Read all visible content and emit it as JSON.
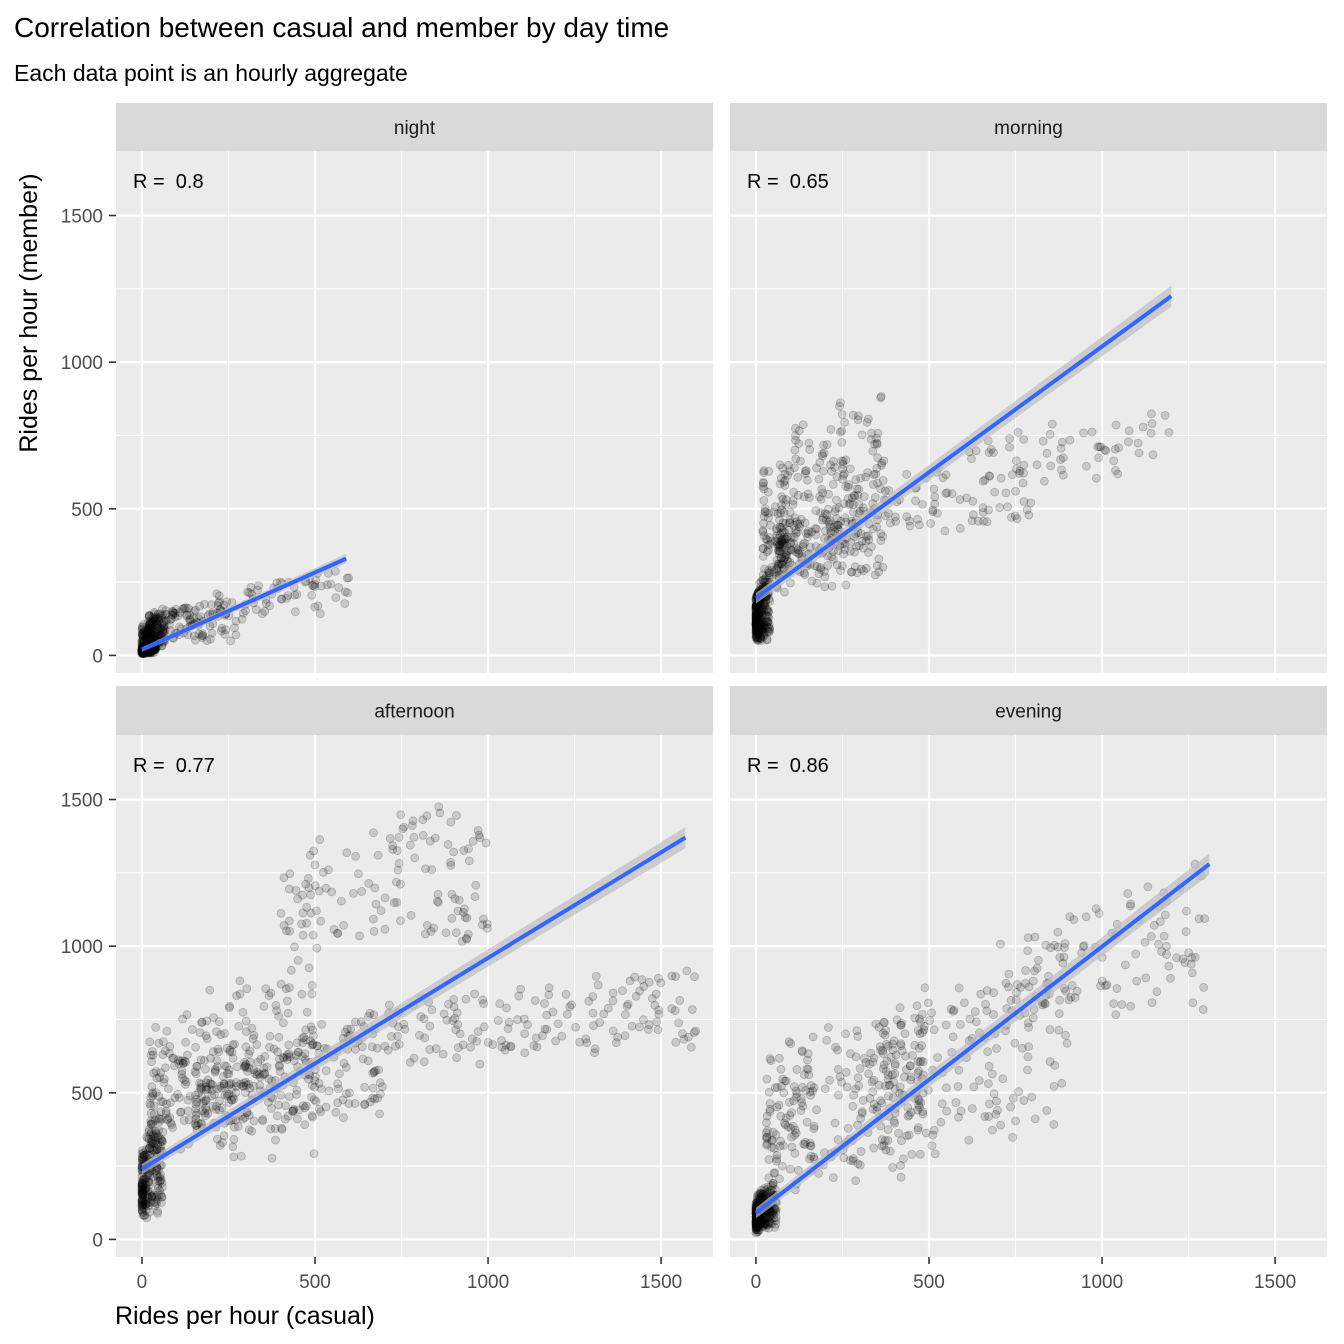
{
  "chart_data": {
    "type": "scatter",
    "title": "Correlation between casual and member by day time",
    "subtitle": "Each data point is an hourly aggregate",
    "xlabel": "Rides per hour (casual)",
    "ylabel": "Rides per hour (member)",
    "xlim": [
      -75,
      1650
    ],
    "ylim": [
      -60,
      1720
    ],
    "x_ticks": [
      0,
      500,
      1000,
      1500
    ],
    "y_ticks": [
      0,
      500,
      1000,
      1500
    ],
    "x_tick_labels": [
      "0",
      "500",
      "1000",
      "1500"
    ],
    "y_tick_labels": [
      "0",
      "500",
      "1000",
      "1500"
    ],
    "grid": true,
    "colors": {
      "panel_bg": "#EBEBEB",
      "strip_bg": "#D9D9D9",
      "grid": "#FFFFFF",
      "points": "#000000",
      "trend": "#3366FF",
      "band": "#BEBEBE"
    },
    "panels": [
      {
        "name": "night",
        "annotation": "R =  0.8",
        "trend": {
          "x0": 0,
          "y0": 20,
          "x1": 590,
          "y1": 330,
          "band_halfwidth": 8
        },
        "clusters": [
          {
            "x": [
              0,
              40
            ],
            "y": [
              0,
              40
            ],
            "n": 240,
            "skew": 1.0
          },
          {
            "x": [
              0,
              70
            ],
            "y": [
              0,
              160
            ],
            "n": 110,
            "skew": 0.5
          },
          {
            "x": [
              20,
              300
            ],
            "y": [
              20,
              200
            ],
            "n": 170,
            "skew": 1.5
          },
          {
            "x": [
              200,
              600
            ],
            "y": [
              110,
              300
            ],
            "n": 60,
            "skew": 0
          }
        ]
      },
      {
        "name": "morning",
        "annotation": "R =  0.65",
        "trend": {
          "x0": 0,
          "y0": 195,
          "x1": 1200,
          "y1": 1225,
          "band_halfwidth": 18
        },
        "clusters": [
          {
            "x": [
              0,
              40
            ],
            "y": [
              0,
              300
            ],
            "n": 300,
            "skew": 1.3
          },
          {
            "x": [
              20,
              370
            ],
            "y": [
              100,
              980
            ],
            "n": 260,
            "skew": 0.4
          },
          {
            "x": [
              60,
              350
            ],
            "y": [
              200,
              550
            ],
            "n": 160,
            "skew": 0.5
          },
          {
            "x": [
              250,
              800
            ],
            "y": [
              380,
              700
            ],
            "n": 90,
            "skew": 0
          },
          {
            "x": [
              600,
              1200
            ],
            "y": [
              550,
              860
            ],
            "n": 55,
            "skew": 0
          }
        ]
      },
      {
        "name": "afternoon",
        "annotation": "R =  0.77",
        "trend": {
          "x0": 0,
          "y0": 240,
          "x1": 1570,
          "y1": 1370,
          "band_halfwidth": 18
        },
        "clusters": [
          {
            "x": [
              0,
              60
            ],
            "y": [
              0,
              450
            ],
            "n": 220,
            "skew": 1.3
          },
          {
            "x": [
              20,
              500
            ],
            "y": [
              150,
              1000
            ],
            "n": 260,
            "skew": 0.4
          },
          {
            "x": [
              150,
              700
            ],
            "y": [
              300,
              800
            ],
            "n": 220,
            "skew": 0.3
          },
          {
            "x": [
              400,
              1000
            ],
            "y": [
              850,
              1600
            ],
            "n": 130,
            "skew": 0
          },
          {
            "x": [
              600,
              1600
            ],
            "y": [
              550,
              950
            ],
            "n": 160,
            "skew": 0
          }
        ]
      },
      {
        "name": "evening",
        "annotation": "R =  0.86",
        "trend": {
          "x0": 0,
          "y0": 90,
          "x1": 1310,
          "y1": 1280,
          "band_halfwidth": 18
        },
        "clusters": [
          {
            "x": [
              0,
              60
            ],
            "y": [
              0,
              200
            ],
            "n": 280,
            "skew": 1.3
          },
          {
            "x": [
              30,
              500
            ],
            "y": [
              50,
              900
            ],
            "n": 240,
            "skew": 0.4
          },
          {
            "x": [
              300,
              900
            ],
            "y": [
              150,
              1100
            ],
            "n": 180,
            "skew": 0
          },
          {
            "x": [
              700,
              1300
            ],
            "y": [
              650,
              1300
            ],
            "n": 100,
            "skew": 0
          }
        ]
      }
    ]
  }
}
